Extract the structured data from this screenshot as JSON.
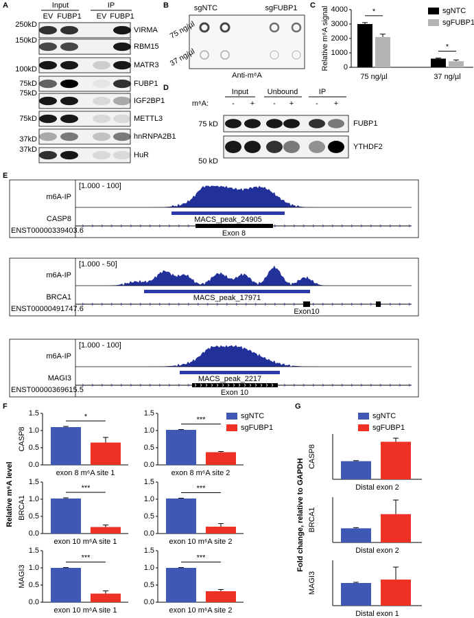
{
  "panel_letters": [
    "A",
    "B",
    "C",
    "D",
    "E",
    "F",
    "G"
  ],
  "blot_A": {
    "groups": [
      "Input",
      "IP"
    ],
    "lanes": [
      "EV",
      "FUBP1",
      "EV",
      "FUBP1"
    ],
    "rows": [
      {
        "marker": "250kD",
        "protein": "VIRMA"
      },
      {
        "marker": "150kD",
        "protein": "RBM15"
      },
      {
        "marker": "100kD",
        "protein": "MATR3"
      },
      {
        "marker": "75kD",
        "protein": "FUBP1"
      },
      {
        "marker": "75kD",
        "protein": "IGF2BP1"
      },
      {
        "marker": "75kD",
        "protein": "METTL3"
      },
      {
        "marker": "37kD",
        "protein": "hnRNPA2B1"
      },
      {
        "marker": "37kD",
        "protein": "HuR"
      }
    ]
  },
  "dot_blot_B": {
    "samples": [
      "sgNTC",
      "sgFUBP1"
    ],
    "concentrations": [
      "75 ng/µl",
      "37 ng/µl"
    ],
    "caption": "Anti-m⁶A"
  },
  "blot_D": {
    "groups": [
      "Input",
      "Unbound",
      "IP"
    ],
    "treatment_label": "m⁶A:",
    "treatments": [
      "-",
      "+",
      "-",
      "+",
      "-",
      "+"
    ],
    "rows": [
      {
        "marker": "75 kD",
        "protein": "FUBP1"
      },
      {
        "marker": "50 kD",
        "protein": "YTHDF2"
      }
    ]
  },
  "tracks_E": [
    {
      "range": "[1.000 - 100]",
      "sample": "m6A-IP",
      "gene": "CASP8",
      "transcript": "ENST00000339403.6",
      "peak": "MACS_peak_24905",
      "exon": "Exon 8"
    },
    {
      "range": "[1.000 - 50]",
      "sample": "m6A-IP",
      "gene": "BRCA1",
      "transcript": "ENST00000491747.6",
      "peak": "MACS_peak_17971",
      "exon": "Exon10"
    },
    {
      "range": "[1.000 - 100]",
      "sample": "m6A-IP",
      "gene": "MAGI3",
      "transcript": "ENST00000369615.5",
      "peak": "MACS_peak_2217",
      "exon": "Exon 10"
    }
  ],
  "chart_data": [
    {
      "type": "bar",
      "ylabel": "Relative m⁶A signal",
      "categories": [
        "75 ng/µl",
        "37 ng/µl"
      ],
      "series": [
        {
          "name": "sgNTC",
          "color": "#000000",
          "values": [
            3000,
            600
          ],
          "errors": [
            100,
            40
          ]
        },
        {
          "name": "sgFUBP1",
          "color": "#b3b3b3",
          "values": [
            2100,
            420
          ],
          "errors": [
            200,
            90
          ]
        }
      ],
      "ylim": [
        0,
        4000
      ],
      "yticks": [
        0,
        1000,
        2000,
        3000,
        4000
      ],
      "significance": [
        "*",
        "*"
      ]
    },
    {
      "type": "bar",
      "ylabel": "Relative m⁶A level",
      "series": [
        {
          "name": "sgNTC",
          "color": "#3f57b5"
        },
        {
          "name": "sgFUBP1",
          "color": "#ee3124"
        }
      ],
      "ylim": [
        0,
        1.5
      ],
      "yticks": [
        {
          "value": 0,
          "label": "0.0"
        },
        {
          "value": 0.5,
          "label": "0.5"
        },
        {
          "value": 1,
          "label": "1.0"
        },
        {
          "value": 1.5,
          "label": "1.5"
        }
      ],
      "subplots": [
        {
          "ylabel": "CASP8",
          "xlabel": "exon 8 m⁶A site 1",
          "values": [
            1.1,
            0.65
          ],
          "errors": [
            0.02,
            0.15
          ],
          "significance": "*"
        },
        {
          "xlabel": "exon 8 m⁶A site 2",
          "values": [
            1.02,
            0.37
          ],
          "errors": [
            0.01,
            0.02
          ],
          "significance": "***"
        },
        {
          "ylabel": "BRCA1",
          "xlabel": "exon 10 m⁶A site 1",
          "values": [
            1.02,
            0.19
          ],
          "errors": [
            0.02,
            0.06
          ],
          "significance": "***"
        },
        {
          "xlabel": "exon 10 m⁶A site 2",
          "values": [
            1.02,
            0.2
          ],
          "errors": [
            0.01,
            0.09
          ],
          "significance": "***"
        },
        {
          "ylabel": "MAGI3",
          "xlabel": "exon 10 m⁶A site 1",
          "values": [
            1.0,
            0.25
          ],
          "errors": [
            0.01,
            0.08
          ],
          "significance": "***"
        },
        {
          "xlabel": "exon 10 m⁶A site 2",
          "values": [
            1.0,
            0.32
          ],
          "errors": [
            0.01,
            0.05
          ],
          "significance": "***"
        }
      ]
    },
    {
      "type": "bar",
      "ylabel": "Fold change, relative to GAPDH",
      "series": [
        {
          "name": "sgNTC",
          "color": "#3f57b5"
        },
        {
          "name": "sgFUBP1",
          "color": "#ee3124"
        }
      ],
      "subplots": [
        {
          "ylabel": "CASP8",
          "xlabel": "Distal exon 2",
          "values": [
            1.0,
            2.07
          ],
          "errors": [
            0.03,
            0.2
          ],
          "ylim": [
            0,
            2.5
          ]
        },
        {
          "ylabel": "BRCA1",
          "xlabel": "Distal exon 2",
          "values": [
            1.0,
            2.0
          ],
          "errors": [
            0.05,
            1.0
          ],
          "ylim": [
            0,
            3.2
          ]
        },
        {
          "ylabel": "MAGI3",
          "xlabel": "Distal exon 1",
          "values": [
            1.0,
            1.15
          ],
          "errors": [
            0.03,
            0.55
          ],
          "ylim": [
            0,
            2
          ]
        }
      ]
    }
  ]
}
